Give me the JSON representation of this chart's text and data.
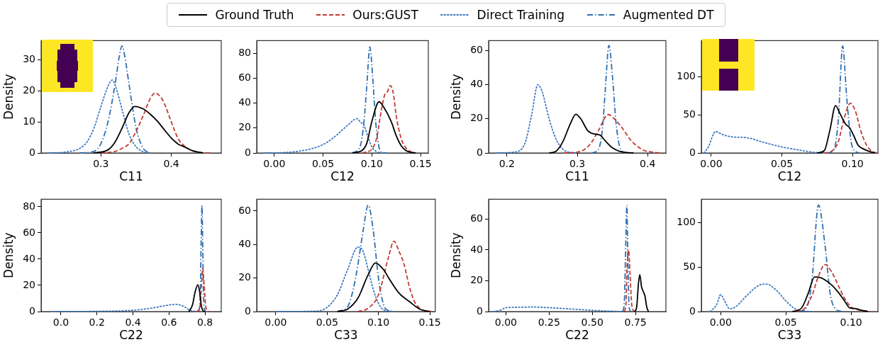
{
  "chart_data": [
    {
      "type": "line",
      "xlabel": "C11",
      "ylabel": "Density",
      "legend": "top",
      "marker": "none",
      "xlim": [
        0.215,
        0.471
      ],
      "ylim": [
        0,
        36.2
      ],
      "xticks": [
        0.3,
        0.4
      ],
      "yticks": [
        0,
        10,
        20,
        30
      ],
      "series": [
        {
          "name": "Ground Truth",
          "color": "#000000",
          "line_style": "solid",
          "x": [
            0.29,
            0.31,
            0.32,
            0.33,
            0.34,
            0.348,
            0.36,
            0.37,
            0.38,
            0.39,
            0.4,
            0.41,
            0.415,
            0.42,
            0.43,
            0.445
          ],
          "values": [
            0,
            1,
            3.5,
            8,
            13,
            15,
            14.2,
            12.5,
            10.3,
            7.5,
            4.8,
            2.8,
            2.3,
            1.8,
            0.7,
            0
          ]
        },
        {
          "name": "Ours:GUST",
          "color": "#c23b33",
          "line_style": "dashed",
          "x": [
            0.3,
            0.32,
            0.33,
            0.34,
            0.35,
            0.36,
            0.37,
            0.377,
            0.385,
            0.39,
            0.4,
            0.41,
            0.42,
            0.43,
            0.445,
            0.455
          ],
          "values": [
            0,
            0.5,
            1.5,
            3,
            7,
            12,
            17.5,
            19.3,
            18,
            16,
            10,
            4.5,
            2,
            0.7,
            0.1,
            0
          ]
        },
        {
          "name": "Direct Training",
          "color": "#3a78c0",
          "line_style": "dotted",
          "x": [
            0.225,
            0.25,
            0.27,
            0.28,
            0.29,
            0.3,
            0.31,
            0.316,
            0.32,
            0.33,
            0.34,
            0.35,
            0.36,
            0.37
          ],
          "values": [
            0,
            0.3,
            1.5,
            3.5,
            8,
            15,
            21.5,
            23.5,
            22,
            14,
            6,
            2,
            0.4,
            0
          ]
        },
        {
          "name": "Augmented DT",
          "color": "#2f6fb0",
          "line_style": "dashdot",
          "x": [
            0.27,
            0.29,
            0.3,
            0.31,
            0.32,
            0.326,
            0.33,
            0.334,
            0.34,
            0.35,
            0.36,
            0.37
          ],
          "values": [
            0,
            0.5,
            3,
            10,
            22,
            31,
            34.5,
            31,
            22,
            8,
            1.5,
            0
          ]
        }
      ]
    },
    {
      "type": "line",
      "xlabel": "C12",
      "marker": "none",
      "xlim": [
        -0.018,
        0.158
      ],
      "ylim": [
        0,
        90
      ],
      "xticks": [
        {
          "value": 0,
          "label": "0.00"
        },
        0.05,
        {
          "value": 0.1,
          "label": "0.10"
        },
        0.15
      ],
      "yticks": [
        0,
        20,
        40,
        60,
        80
      ],
      "series": [
        {
          "color": "#000000",
          "line_style": "solid",
          "x": [
            0.08,
            0.09,
            0.095,
            0.1,
            0.1075,
            0.112,
            0.12,
            0.125,
            0.13,
            0.135,
            0.14,
            0.145
          ],
          "values": [
            0,
            2,
            8,
            25,
            41,
            37,
            25,
            14,
            6,
            2,
            0.5,
            0
          ]
        },
        {
          "color": "#c23b33",
          "line_style": "dashed",
          "x": [
            0.09,
            0.1,
            0.105,
            0.11,
            0.113,
            0.116,
            0.119,
            0.122,
            0.125,
            0.13,
            0.135,
            0.14,
            0.145
          ],
          "values": [
            0,
            3,
            12,
            35,
            46,
            49,
            54,
            48,
            30,
            12,
            4,
            1,
            0
          ]
        },
        {
          "color": "#3a78c0",
          "line_style": "dotted",
          "x": [
            -0.01,
            0.01,
            0.03,
            0.045,
            0.055,
            0.065,
            0.075,
            0.085,
            0.088,
            0.092,
            0.097,
            0.1,
            0.105,
            0.11
          ],
          "values": [
            0,
            0.3,
            2,
            5,
            9,
            15,
            22,
            27.5,
            25,
            22,
            11,
            5,
            1,
            0
          ]
        },
        {
          "color": "#2f6fb0",
          "line_style": "dashdot",
          "x": [
            0.08,
            0.088,
            0.092,
            0.095,
            0.098,
            0.101,
            0.104,
            0.107,
            0.11,
            0.115
          ],
          "values": [
            0,
            5,
            25,
            55,
            85,
            60,
            25,
            6,
            0.5,
            0
          ]
        }
      ]
    },
    {
      "type": "line",
      "xlabel": "C11",
      "ylabel": "Density",
      "marker": "none",
      "xlim": [
        0.174,
        0.426
      ],
      "ylim": [
        0,
        65.8
      ],
      "xticks": [
        0.2,
        0.3,
        0.4
      ],
      "yticks": [
        0,
        20,
        40,
        60
      ],
      "series": [
        {
          "color": "#000000",
          "line_style": "solid",
          "x": [
            0.26,
            0.27,
            0.28,
            0.29,
            0.298,
            0.305,
            0.315,
            0.325,
            0.332,
            0.34,
            0.35,
            0.36,
            0.37,
            0.38
          ],
          "values": [
            0,
            1,
            7,
            17,
            22.7,
            20,
            13,
            11,
            10.5,
            7,
            3,
            1,
            0.3,
            0
          ]
        },
        {
          "color": "#c23b33",
          "line_style": "dashed",
          "x": [
            0.28,
            0.3,
            0.31,
            0.32,
            0.33,
            0.344,
            0.355,
            0.365,
            0.375,
            0.385,
            0.395,
            0.41,
            0.42
          ],
          "values": [
            0,
            0.5,
            2,
            6,
            13,
            22.5,
            19,
            14,
            8,
            4,
            1.5,
            0.3,
            0
          ]
        },
        {
          "color": "#3a78c0",
          "line_style": "dotted",
          "x": [
            0.185,
            0.21,
            0.225,
            0.235,
            0.244,
            0.25,
            0.26,
            0.27,
            0.28,
            0.29,
            0.3
          ],
          "values": [
            0,
            0.5,
            5,
            22,
            40,
            36,
            20,
            8,
            2,
            0.3,
            0
          ]
        },
        {
          "color": "#2f6fb0",
          "line_style": "dashdot",
          "x": [
            0.32,
            0.33,
            0.336,
            0.34,
            0.345,
            0.35,
            0.355,
            0.36,
            0.365,
            0.37
          ],
          "values": [
            0,
            2,
            15,
            38,
            63,
            45,
            18,
            4,
            0.5,
            0
          ]
        }
      ]
    },
    {
      "type": "line",
      "xlabel": "C12",
      "marker": "none",
      "xlim": [
        -0.007,
        0.118
      ],
      "ylim": [
        0,
        147
      ],
      "xticks": [
        {
          "value": 0,
          "label": "0.00"
        },
        0.05,
        {
          "value": 0.1,
          "label": "0.10"
        }
      ],
      "yticks": [
        0,
        50,
        100
      ],
      "series": [
        {
          "color": "#000000",
          "line_style": "solid",
          "x": [
            0.075,
            0.08,
            0.084,
            0.088,
            0.091,
            0.095,
            0.098,
            0.101,
            0.104,
            0.108,
            0.112,
            0.116
          ],
          "values": [
            0,
            3,
            30,
            62,
            52,
            38,
            33,
            22,
            10,
            5,
            2,
            0
          ]
        },
        {
          "color": "#c23b33",
          "line_style": "dashed",
          "x": [
            0.08,
            0.085,
            0.09,
            0.094,
            0.0985,
            0.102,
            0.106,
            0.11,
            0.114,
            0.117
          ],
          "values": [
            0,
            2,
            15,
            45,
            65,
            55,
            28,
            10,
            2,
            0
          ]
        },
        {
          "color": "#3a78c0",
          "line_style": "dotted",
          "x": [
            -0.005,
            -0.002,
            0.003,
            0.008,
            0.015,
            0.025,
            0.035,
            0.045,
            0.055,
            0.065,
            0.072,
            0.08
          ],
          "values": [
            0,
            8,
            28,
            24,
            21,
            20,
            15,
            10,
            6,
            3,
            1,
            0
          ]
        },
        {
          "color": "#2f6fb0",
          "line_style": "dashdot",
          "x": [
            0.082,
            0.087,
            0.09,
            0.093,
            0.096,
            0.099,
            0.102,
            0.105
          ],
          "values": [
            0,
            5,
            45,
            140,
            70,
            15,
            2,
            0
          ]
        }
      ]
    },
    {
      "type": "line",
      "xlabel": "C22",
      "ylabel": "Density",
      "marker": "none",
      "xlim": [
        -0.11,
        0.89
      ],
      "ylim": [
        0,
        85.7
      ],
      "xticks": [
        {
          "value": 0,
          "label": "0.0"
        },
        0.2,
        0.4,
        0.6,
        0.8
      ],
      "yticks": [
        0,
        20,
        40,
        60,
        80
      ],
      "series": [
        {
          "color": "#000000",
          "line_style": "solid",
          "x": [
            0.71,
            0.73,
            0.745,
            0.76,
            0.77,
            0.78,
            0.79,
            0.8
          ],
          "values": [
            0,
            5,
            15,
            20.5,
            15,
            4,
            0.5,
            0
          ]
        },
        {
          "color": "#c23b33",
          "line_style": "dashed",
          "x": [
            0.75,
            0.77,
            0.778,
            0.787,
            0.795,
            0.805,
            0.82
          ],
          "values": [
            0,
            2,
            15,
            33,
            20,
            3,
            0
          ]
        },
        {
          "color": "#3a78c0",
          "line_style": "dotted",
          "x": [
            -0.05,
            0.2,
            0.4,
            0.5,
            0.6,
            0.64,
            0.68,
            0.71,
            0.73,
            0.76
          ],
          "values": [
            0,
            0.2,
            1,
            2.5,
            5,
            5.5,
            4,
            1.5,
            0.5,
            0
          ]
        },
        {
          "color": "#2f6fb0",
          "line_style": "dashdot",
          "x": [
            0.765,
            0.773,
            0.778,
            0.783,
            0.787,
            0.792,
            0.8
          ],
          "values": [
            0,
            10,
            50,
            81,
            50,
            10,
            0
          ]
        }
      ]
    },
    {
      "type": "line",
      "xlabel": "C33",
      "marker": "none",
      "xlim": [
        -0.0185,
        0.1553
      ],
      "ylim": [
        0,
        67
      ],
      "xticks": [
        {
          "value": 0,
          "label": "0.00"
        },
        0.05,
        {
          "value": 0.1,
          "label": "0.10"
        },
        0.15
      ],
      "yticks": [
        0,
        20,
        40,
        60
      ],
      "series": [
        {
          "color": "#000000",
          "line_style": "solid",
          "x": [
            0.06,
            0.07,
            0.08,
            0.09,
            0.097,
            0.105,
            0.11,
            0.12,
            0.13,
            0.14,
            0.15
          ],
          "values": [
            0,
            1.5,
            8,
            22,
            29,
            25,
            20,
            11,
            6,
            1.5,
            0
          ]
        },
        {
          "color": "#c23b33",
          "line_style": "dashed",
          "x": [
            0.08,
            0.09,
            0.1,
            0.11,
            0.115,
            0.12,
            0.125,
            0.13,
            0.135,
            0.14,
            0.145,
            0.153
          ],
          "values": [
            0,
            2,
            10,
            33,
            42,
            36,
            28,
            15,
            6,
            2,
            0.5,
            0
          ]
        },
        {
          "color": "#3a78c0",
          "line_style": "dotted",
          "x": [
            0.0,
            0.04,
            0.05,
            0.06,
            0.07,
            0.08,
            0.085,
            0.09,
            0.095,
            0.1,
            0.105,
            0.115
          ],
          "values": [
            0,
            0.3,
            2.5,
            10,
            25,
            38.5,
            36,
            25,
            13,
            5,
            1,
            0
          ]
        },
        {
          "color": "#2f6fb0",
          "line_style": "dashdot",
          "x": [
            0.06,
            0.07,
            0.075,
            0.08,
            0.085,
            0.09,
            0.095,
            0.1,
            0.105,
            0.11,
            0.115
          ],
          "values": [
            0,
            3,
            12,
            28,
            48,
            63.5,
            48,
            20,
            4,
            0.5,
            0
          ]
        }
      ]
    },
    {
      "type": "line",
      "xlabel": "C22",
      "ylabel": "Density",
      "marker": "none",
      "xlim": [
        -0.1,
        0.926
      ],
      "ylim": [
        0,
        72.9
      ],
      "xticks": [
        {
          "value": 0,
          "label": "0.00"
        },
        0.25,
        {
          "value": 0.5,
          "label": "0.50"
        },
        0.75
      ],
      "yticks": [
        0,
        20,
        40,
        60
      ],
      "series": [
        {
          "color": "#000000",
          "line_style": "solid",
          "x": [
            0.745,
            0.757,
            0.767,
            0.775,
            0.785,
            0.795,
            0.805,
            0.815,
            0.825
          ],
          "values": [
            0,
            3,
            18,
            24,
            16,
            13,
            10,
            3,
            0
          ]
        },
        {
          "color": "#c23b33",
          "line_style": "dashed",
          "x": [
            0.685,
            0.695,
            0.7,
            0.71,
            0.718,
            0.728,
            0.74
          ],
          "values": [
            0,
            5,
            25,
            40,
            25,
            5,
            0
          ]
        },
        {
          "color": "#3a78c0",
          "line_style": "dotted",
          "x": [
            -0.07,
            -0.03,
            0.0,
            0.1,
            0.15,
            0.25,
            0.4,
            0.5,
            0.6,
            0.68
          ],
          "values": [
            0,
            1,
            2.5,
            2.8,
            3,
            2.5,
            1.5,
            0.8,
            0.3,
            0
          ]
        },
        {
          "color": "#2f6fb0",
          "line_style": "dashdot",
          "x": [
            0.675,
            0.685,
            0.692,
            0.7,
            0.705,
            0.712,
            0.72
          ],
          "values": [
            0,
            5,
            35,
            69,
            40,
            5,
            0
          ]
        }
      ]
    },
    {
      "type": "line",
      "xlabel": "C33",
      "marker": "none",
      "xlim": [
        -0.0148,
        0.1206
      ],
      "ylim": [
        0,
        126.6
      ],
      "xticks": [
        {
          "value": 0,
          "label": "0.00"
        },
        0.05,
        {
          "value": 0.1,
          "label": "0.10"
        }
      ],
      "yticks": [
        0,
        50,
        100
      ],
      "series": [
        {
          "color": "#000000",
          "line_style": "solid",
          "x": [
            0.055,
            0.062,
            0.067,
            0.072,
            0.077,
            0.085,
            0.09,
            0.095,
            0.099,
            0.103,
            0.108,
            0.113
          ],
          "values": [
            0,
            4,
            20,
            39,
            38,
            30,
            22,
            12,
            4,
            3.5,
            1.5,
            0
          ]
        },
        {
          "color": "#c23b33",
          "line_style": "dashed",
          "x": [
            0.058,
            0.064,
            0.07,
            0.075,
            0.08,
            0.085,
            0.09,
            0.095,
            0.1,
            0.105,
            0.115
          ],
          "values": [
            0,
            3,
            18,
            40,
            53,
            45,
            30,
            15,
            5,
            2,
            0
          ]
        },
        {
          "color": "#3a78c0",
          "line_style": "dotted",
          "x": [
            -0.008,
            -0.003,
            0.0,
            0.003,
            0.007,
            0.012,
            0.02,
            0.03,
            0.035,
            0.042,
            0.05,
            0.056,
            0.062,
            0.07
          ],
          "values": [
            0,
            8,
            19,
            12,
            3,
            6,
            18,
            30,
            31,
            25,
            12,
            4,
            1,
            0
          ]
        },
        {
          "color": "#2f6fb0",
          "line_style": "dashdot",
          "x": [
            0.06,
            0.066,
            0.07,
            0.075,
            0.08,
            0.084,
            0.088,
            0.093
          ],
          "values": [
            0,
            5,
            35,
            120,
            75,
            20,
            3,
            0
          ]
        }
      ]
    }
  ]
}
